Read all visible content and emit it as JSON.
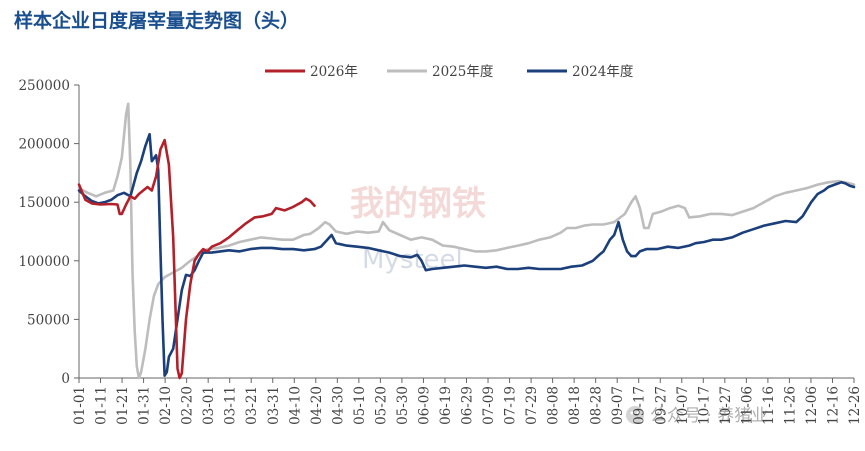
{
  "chart_data": {
    "type": "line",
    "title": "样本企业日度屠宰量走势图（头）",
    "xlabel": "",
    "ylabel": "",
    "ylim": [
      0,
      250000
    ],
    "yticks": [
      0,
      50000,
      100000,
      150000,
      200000,
      250000
    ],
    "x_tick_labels": [
      "01-01",
      "01-11",
      "01-21",
      "01-31",
      "02-10",
      "02-20",
      "03-01",
      "03-11",
      "03-21",
      "03-31",
      "04-10",
      "04-20",
      "04-30",
      "05-10",
      "05-20",
      "05-30",
      "06-09",
      "06-19",
      "06-29",
      "07-09",
      "07-19",
      "07-29",
      "08-08",
      "08-18",
      "08-28",
      "09-07",
      "09-17",
      "09-27",
      "10-07",
      "10-17",
      "10-27",
      "11-06",
      "11-16",
      "11-26",
      "12-06",
      "12-16",
      "12-26"
    ],
    "x_range_days": [
      0,
      362
    ],
    "grid": false,
    "legend_position": "top",
    "series": [
      {
        "name": "2026年",
        "color": "#b3202a",
        "points": [
          [
            0,
            165000
          ],
          [
            3,
            152000
          ],
          [
            6,
            149000
          ],
          [
            10,
            148000
          ],
          [
            15,
            148500
          ],
          [
            18,
            148000
          ],
          [
            19,
            140000
          ],
          [
            20,
            140000
          ],
          [
            22,
            148000
          ],
          [
            24,
            155000
          ],
          [
            26,
            153000
          ],
          [
            28,
            157000
          ],
          [
            30,
            160000
          ],
          [
            32,
            163000
          ],
          [
            34,
            160000
          ],
          [
            36,
            172000
          ],
          [
            38,
            195000
          ],
          [
            40,
            203000
          ],
          [
            42,
            182000
          ],
          [
            44,
            120000
          ],
          [
            46,
            8000
          ],
          [
            47,
            0
          ],
          [
            48,
            4000
          ],
          [
            50,
            50000
          ],
          [
            52,
            80000
          ],
          [
            54,
            100000
          ],
          [
            56,
            106000
          ],
          [
            58,
            110000
          ],
          [
            60,
            108000
          ],
          [
            62,
            112000
          ],
          [
            66,
            115000
          ],
          [
            70,
            120000
          ],
          [
            74,
            126000
          ],
          [
            78,
            132000
          ],
          [
            82,
            137000
          ],
          [
            86,
            138000
          ],
          [
            90,
            140000
          ],
          [
            92,
            145000
          ],
          [
            96,
            143000
          ],
          [
            100,
            146000
          ],
          [
            104,
            150000
          ],
          [
            106,
            153000
          ],
          [
            108,
            151000
          ],
          [
            110,
            147000
          ]
        ]
      },
      {
        "name": "2025年度",
        "color": "#bdbdbd",
        "points": [
          [
            0,
            162000
          ],
          [
            4,
            158000
          ],
          [
            8,
            155000
          ],
          [
            12,
            158000
          ],
          [
            16,
            160000
          ],
          [
            18,
            172000
          ],
          [
            20,
            188000
          ],
          [
            22,
            225000
          ],
          [
            23,
            234000
          ],
          [
            24,
            180000
          ],
          [
            25,
            90000
          ],
          [
            26,
            40000
          ],
          [
            27,
            10000
          ],
          [
            28,
            0
          ],
          [
            29,
            5000
          ],
          [
            31,
            25000
          ],
          [
            33,
            50000
          ],
          [
            35,
            70000
          ],
          [
            37,
            80000
          ],
          [
            40,
            86000
          ],
          [
            44,
            90000
          ],
          [
            48,
            94000
          ],
          [
            52,
            100000
          ],
          [
            56,
            105000
          ],
          [
            60,
            110000
          ],
          [
            65,
            111000
          ],
          [
            70,
            113000
          ],
          [
            75,
            116000
          ],
          [
            80,
            118000
          ],
          [
            85,
            120000
          ],
          [
            90,
            119000
          ],
          [
            95,
            118000
          ],
          [
            100,
            118000
          ],
          [
            105,
            122000
          ],
          [
            108,
            123000
          ],
          [
            112,
            128000
          ],
          [
            115,
            133000
          ],
          [
            117,
            131000
          ],
          [
            120,
            125000
          ],
          [
            125,
            123000
          ],
          [
            130,
            125000
          ],
          [
            135,
            124000
          ],
          [
            140,
            125000
          ],
          [
            142,
            133000
          ],
          [
            145,
            126000
          ],
          [
            150,
            122000
          ],
          [
            155,
            118000
          ],
          [
            160,
            120000
          ],
          [
            165,
            118000
          ],
          [
            170,
            113000
          ],
          [
            175,
            112000
          ],
          [
            180,
            110000
          ],
          [
            185,
            108000
          ],
          [
            190,
            108000
          ],
          [
            195,
            109000
          ],
          [
            200,
            111000
          ],
          [
            205,
            113000
          ],
          [
            210,
            115000
          ],
          [
            215,
            118000
          ],
          [
            220,
            120000
          ],
          [
            225,
            124000
          ],
          [
            228,
            128000
          ],
          [
            232,
            128000
          ],
          [
            236,
            130000
          ],
          [
            240,
            131000
          ],
          [
            245,
            131000
          ],
          [
            250,
            133000
          ],
          [
            255,
            140000
          ],
          [
            258,
            150000
          ],
          [
            260,
            155000
          ],
          [
            262,
            145000
          ],
          [
            264,
            128000
          ],
          [
            266,
            128000
          ],
          [
            268,
            140000
          ],
          [
            272,
            142000
          ],
          [
            276,
            145000
          ],
          [
            280,
            147000
          ],
          [
            283,
            145000
          ],
          [
            285,
            137000
          ],
          [
            290,
            138000
          ],
          [
            295,
            140000
          ],
          [
            300,
            140000
          ],
          [
            305,
            139000
          ],
          [
            310,
            142000
          ],
          [
            315,
            145000
          ],
          [
            320,
            150000
          ],
          [
            325,
            155000
          ],
          [
            330,
            158000
          ],
          [
            335,
            160000
          ],
          [
            340,
            162000
          ],
          [
            345,
            165000
          ],
          [
            350,
            167000
          ],
          [
            355,
            168000
          ],
          [
            360,
            166000
          ],
          [
            362,
            165000
          ]
        ]
      },
      {
        "name": "2024年度",
        "color": "#1a3f7a",
        "points": [
          [
            0,
            160000
          ],
          [
            3,
            155000
          ],
          [
            6,
            151000
          ],
          [
            9,
            149000
          ],
          [
            12,
            150000
          ],
          [
            15,
            152000
          ],
          [
            18,
            156000
          ],
          [
            21,
            158000
          ],
          [
            24,
            155000
          ],
          [
            27,
            175000
          ],
          [
            29,
            185000
          ],
          [
            31,
            198000
          ],
          [
            33,
            208000
          ],
          [
            34,
            185000
          ],
          [
            36,
            190000
          ],
          [
            37,
            178000
          ],
          [
            38,
            110000
          ],
          [
            39,
            50000
          ],
          [
            40,
            2000
          ],
          [
            41,
            5000
          ],
          [
            42,
            18000
          ],
          [
            44,
            25000
          ],
          [
            46,
            50000
          ],
          [
            48,
            75000
          ],
          [
            50,
            88000
          ],
          [
            52,
            87000
          ],
          [
            54,
            92000
          ],
          [
            56,
            100000
          ],
          [
            58,
            107000
          ],
          [
            62,
            107000
          ],
          [
            66,
            108000
          ],
          [
            70,
            109000
          ],
          [
            75,
            108000
          ],
          [
            80,
            110000
          ],
          [
            85,
            111000
          ],
          [
            90,
            111000
          ],
          [
            95,
            110000
          ],
          [
            100,
            110000
          ],
          [
            105,
            109000
          ],
          [
            110,
            110000
          ],
          [
            113,
            112000
          ],
          [
            116,
            118000
          ],
          [
            118,
            122000
          ],
          [
            120,
            115000
          ],
          [
            125,
            113000
          ],
          [
            130,
            112000
          ],
          [
            135,
            111000
          ],
          [
            140,
            109000
          ],
          [
            145,
            107000
          ],
          [
            150,
            104000
          ],
          [
            155,
            103000
          ],
          [
            158,
            105000
          ],
          [
            160,
            100000
          ],
          [
            162,
            92000
          ],
          [
            165,
            93000
          ],
          [
            170,
            94000
          ],
          [
            175,
            95000
          ],
          [
            180,
            96000
          ],
          [
            185,
            95000
          ],
          [
            190,
            94000
          ],
          [
            195,
            95000
          ],
          [
            200,
            93000
          ],
          [
            205,
            93000
          ],
          [
            210,
            94000
          ],
          [
            215,
            93000
          ],
          [
            220,
            93000
          ],
          [
            225,
            93000
          ],
          [
            230,
            95000
          ],
          [
            235,
            96000
          ],
          [
            240,
            100000
          ],
          [
            243,
            105000
          ],
          [
            245,
            108000
          ],
          [
            248,
            118000
          ],
          [
            250,
            122000
          ],
          [
            252,
            133000
          ],
          [
            254,
            118000
          ],
          [
            256,
            108000
          ],
          [
            258,
            104000
          ],
          [
            260,
            104000
          ],
          [
            262,
            108000
          ],
          [
            265,
            110000
          ],
          [
            270,
            110000
          ],
          [
            275,
            112000
          ],
          [
            280,
            111000
          ],
          [
            285,
            113000
          ],
          [
            288,
            115000
          ],
          [
            292,
            116000
          ],
          [
            296,
            118000
          ],
          [
            300,
            118000
          ],
          [
            305,
            120000
          ],
          [
            310,
            124000
          ],
          [
            315,
            127000
          ],
          [
            320,
            130000
          ],
          [
            325,
            132000
          ],
          [
            330,
            134000
          ],
          [
            335,
            133000
          ],
          [
            338,
            138000
          ],
          [
            342,
            150000
          ],
          [
            345,
            157000
          ],
          [
            348,
            160000
          ],
          [
            350,
            163000
          ],
          [
            353,
            165000
          ],
          [
            356,
            167000
          ],
          [
            358,
            166000
          ],
          [
            360,
            164000
          ],
          [
            362,
            163000
          ]
        ]
      }
    ]
  },
  "watermark": {
    "center_text": "我的钢铁",
    "center_subtext": "Mysteel",
    "wechat_text": "公众号 · 养猪业"
  }
}
